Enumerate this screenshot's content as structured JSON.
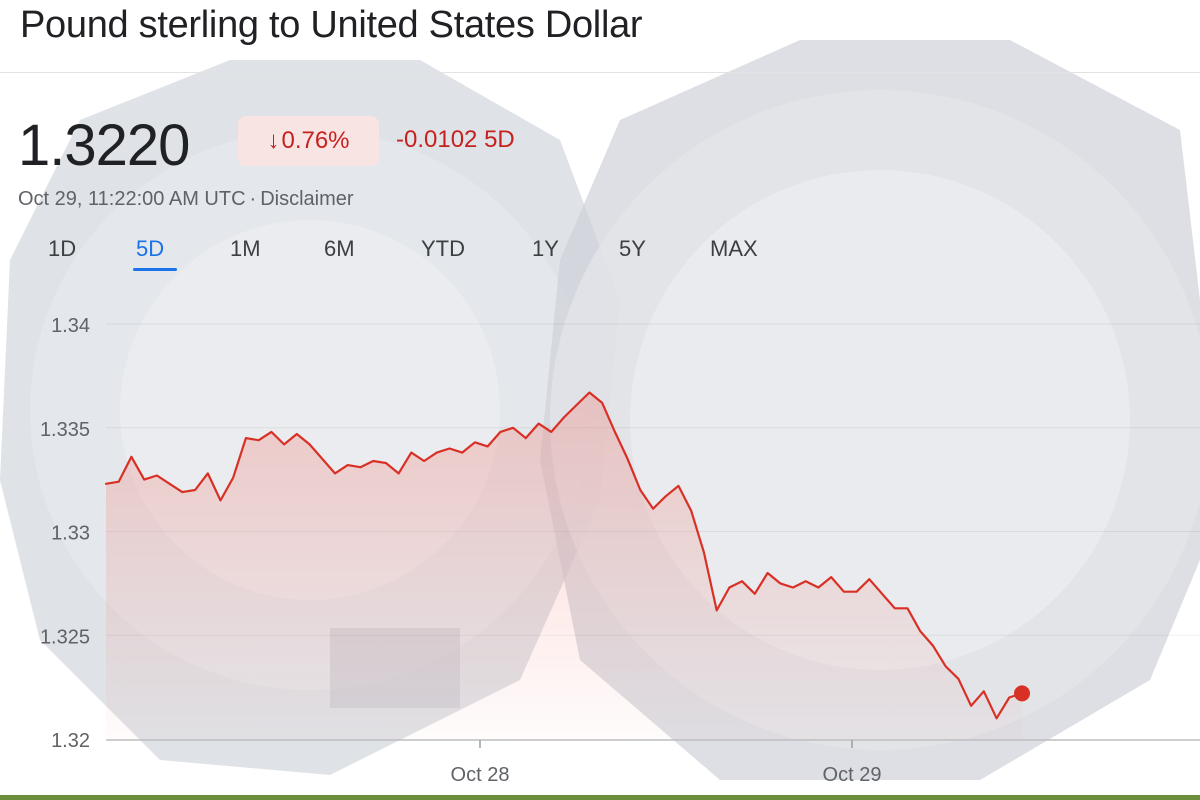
{
  "title": "Pound sterling to United States Dollar",
  "price": "1.3220",
  "change": {
    "direction": "down",
    "percent": "0.76%",
    "absolute": "-0.0102",
    "period": "5D"
  },
  "timestamp": "Oct 29, 11:22:00 AM UTC",
  "disclaimer": "Disclaimer",
  "tabs": [
    {
      "label": "1D",
      "active": false
    },
    {
      "label": "5D",
      "active": true
    },
    {
      "label": "1M",
      "active": false
    },
    {
      "label": "6M",
      "active": false
    },
    {
      "label": "YTD",
      "active": false
    },
    {
      "label": "1Y",
      "active": false
    },
    {
      "label": "5Y",
      "active": false
    },
    {
      "label": "MAX",
      "active": false
    }
  ],
  "colors": {
    "line": "#d93025",
    "area": "#f28b82",
    "accent": "#1a73e8",
    "negative": "#c5221f"
  },
  "chart_data": {
    "type": "area",
    "x_tick_labels": [
      "Oct 28",
      "Oct 29"
    ],
    "y_tick_labels": [
      "1.34",
      "1.335",
      "1.33",
      "1.325",
      "1.32"
    ],
    "ylim": [
      1.32,
      1.34
    ],
    "grid": true,
    "series": [
      {
        "values": [
          1.3323,
          1.3324,
          1.3336,
          1.3325,
          1.3327,
          1.3323,
          1.3319,
          1.332,
          1.3328,
          1.3315,
          1.3326,
          1.3345,
          1.3344,
          1.3348,
          1.3342,
          1.3347,
          1.3342,
          1.3335,
          1.3328,
          1.3332,
          1.3331,
          1.3334,
          1.3333,
          1.3328,
          1.3338,
          1.3334,
          1.3338,
          1.334,
          1.3338,
          1.3343,
          1.3341,
          1.3348,
          1.335,
          1.3345,
          1.3352,
          1.3348,
          1.3355,
          1.3361,
          1.3367,
          1.3362,
          1.3348,
          1.3335,
          1.332,
          1.3311,
          1.3317,
          1.3322,
          1.331,
          1.329,
          1.3262,
          1.3273,
          1.3276,
          1.327,
          1.328,
          1.3275,
          1.3273,
          1.3276,
          1.3273,
          1.3278,
          1.3271,
          1.3271,
          1.3277,
          1.327,
          1.3263,
          1.3263,
          1.3252,
          1.3245,
          1.3235,
          1.3229,
          1.3216,
          1.3223,
          1.321,
          1.322,
          1.3222
        ]
      }
    ]
  }
}
